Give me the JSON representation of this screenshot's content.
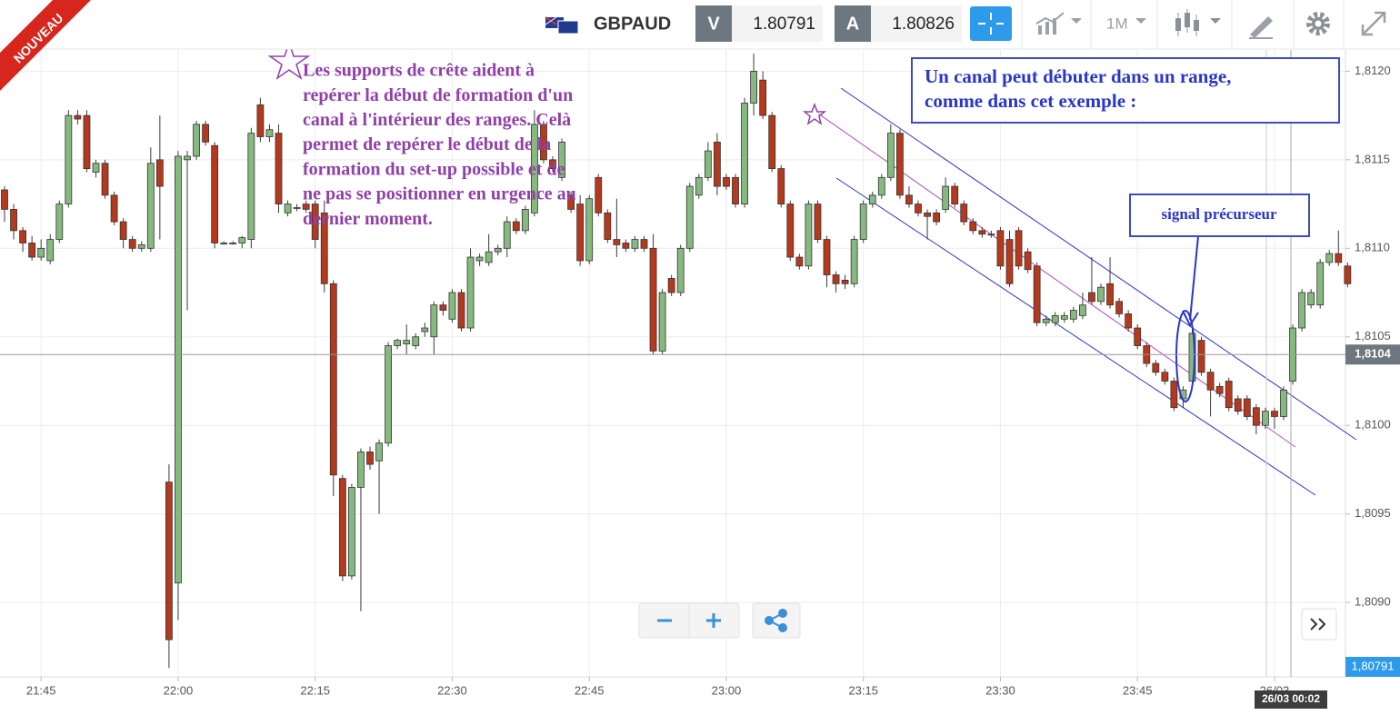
{
  "badge": "NOUVEAU",
  "toolbar": {
    "symbol": "GBPAUD",
    "sell": {
      "label": "V",
      "price": "1.80791"
    },
    "buy": {
      "label": "A",
      "price": "1.80826"
    },
    "timeframe": "1M"
  },
  "notes": {
    "setup": [
      "Les supports de crête aident à",
      "repérer la début de formation d'un",
      "canal à l'intérieur des ranges. Celà",
      "permet de repérer le début de la",
      "formation du set-up possible et de",
      "ne pas se positionner en urgence au",
      "dernier moment."
    ],
    "channel": [
      "Un canal peut débuter dans un range,",
      "comme dans cet exemple :"
    ],
    "signal": "signal précurseur"
  },
  "chart_data": {
    "type": "candlestick",
    "up_color": "#86b97f",
    "down_color": "#b5391c",
    "grid": true,
    "ylim": [
      1.80858,
      1.81212
    ],
    "yticks": [
      {
        "value": 1.809,
        "label": "1,8090"
      },
      {
        "value": 1.8095,
        "label": "1,8095"
      },
      {
        "value": 1.81,
        "label": "1,8100"
      },
      {
        "value": 1.8105,
        "label": "1,8105"
      },
      {
        "value": 1.811,
        "label": "1,8110"
      },
      {
        "value": 1.8115,
        "label": "1,8115"
      },
      {
        "value": 1.812,
        "label": "1,8120"
      }
    ],
    "current_price": {
      "value": 1.8104,
      "label": "1,8104"
    },
    "bid_price": {
      "value": 1.80791,
      "label": "1,80791"
    },
    "crosshair_label": "26/03 00:02",
    "categories": [
      null,
      null,
      null,
      null,
      "21:45",
      null,
      null,
      null,
      null,
      null,
      null,
      null,
      null,
      null,
      null,
      null,
      null,
      null,
      null,
      "22:00",
      null,
      null,
      null,
      null,
      null,
      null,
      null,
      null,
      null,
      null,
      null,
      null,
      null,
      null,
      "22:15",
      null,
      null,
      null,
      null,
      null,
      null,
      null,
      null,
      null,
      null,
      null,
      null,
      null,
      null,
      "22:30",
      null,
      null,
      null,
      null,
      null,
      null,
      null,
      null,
      null,
      null,
      null,
      null,
      null,
      null,
      "22:45",
      null,
      null,
      null,
      null,
      null,
      null,
      null,
      null,
      null,
      null,
      null,
      null,
      null,
      null,
      "23:00",
      null,
      null,
      null,
      null,
      null,
      null,
      null,
      null,
      null,
      null,
      null,
      null,
      null,
      null,
      "23:15",
      null,
      null,
      null,
      null,
      null,
      null,
      null,
      null,
      null,
      null,
      null,
      null,
      null,
      null,
      "23:30",
      null,
      null,
      null,
      null,
      null,
      null,
      null,
      null,
      null,
      null,
      null,
      null,
      null,
      null,
      "23:45",
      null,
      null,
      null,
      null,
      null,
      null,
      null,
      null,
      null,
      null,
      null,
      null,
      null,
      null,
      "26/03",
      null,
      null,
      null,
      null,
      null,
      null,
      null,
      null
    ],
    "ohlc": [
      [
        1.81133,
        1.81135,
        1.81115,
        1.81122
      ],
      [
        1.81122,
        1.81125,
        1.81105,
        1.8111
      ],
      [
        1.8111,
        1.81112,
        1.81098,
        1.81103
      ],
      [
        1.81103,
        1.81107,
        1.81093,
        1.81095
      ],
      [
        1.81095,
        1.81105,
        1.81093,
        1.811
      ],
      [
        1.81093,
        1.81108,
        1.81091,
        1.81105
      ],
      [
        1.81105,
        1.81127,
        1.81103,
        1.81125
      ],
      [
        1.81125,
        1.81178,
        1.81123,
        1.81175
      ],
      [
        1.81175,
        1.81178,
        1.8117,
        1.81173
      ],
      [
        1.81175,
        1.81178,
        1.81143,
        1.81145
      ],
      [
        1.81143,
        1.8115,
        1.8114,
        1.81148
      ],
      [
        1.81148,
        1.8115,
        1.81128,
        1.8113
      ],
      [
        1.8113,
        1.81132,
        1.81113,
        1.81115
      ],
      [
        1.81115,
        1.81117,
        1.811,
        1.81105
      ],
      [
        1.81105,
        1.81107,
        1.81098,
        1.811
      ],
      [
        1.811,
        1.81104,
        1.81098,
        1.81102
      ],
      [
        1.811,
        1.81157,
        1.81098,
        1.81148
      ],
      [
        1.8115,
        1.81175,
        1.81105,
        1.81135
      ],
      [
        1.80968,
        1.80978,
        1.80863,
        1.80879
      ],
      [
        1.80911,
        1.81155,
        1.8089,
        1.81152
      ],
      [
        1.8115,
        1.81155,
        1.81065,
        1.81152
      ],
      [
        1.81152,
        1.81172,
        1.8115,
        1.8117
      ],
      [
        1.8117,
        1.81172,
        1.81158,
        1.8116
      ],
      [
        1.81158,
        1.8116,
        1.811,
        1.81103
      ],
      [
        1.81103,
        1.81104,
        1.81102,
        1.81103
      ],
      [
        1.81103,
        1.81104,
        1.81102,
        1.81103
      ],
      [
        1.81103,
        1.81107,
        1.811,
        1.81106
      ],
      [
        1.81105,
        1.81168,
        1.811,
        1.81165
      ],
      [
        1.81181,
        1.81185,
        1.8116,
        1.81163
      ],
      [
        1.81163,
        1.8117,
        1.8116,
        1.81167
      ],
      [
        1.81165,
        1.8117,
        1.8112,
        1.81125
      ],
      [
        1.8112,
        1.81127,
        1.81118,
        1.81125
      ],
      [
        1.81123,
        1.81125,
        1.81121,
        1.81123
      ],
      [
        1.81125,
        1.81127,
        1.8112,
        1.81122
      ],
      [
        1.81125,
        1.81127,
        1.811,
        1.81105
      ],
      [
        1.8112,
        1.81127,
        1.81075,
        1.8108
      ],
      [
        1.8108,
        1.81082,
        1.8096,
        1.80972
      ],
      [
        1.8097,
        1.80972,
        1.80912,
        1.80915
      ],
      [
        1.80915,
        1.80967,
        1.80913,
        1.80965
      ],
      [
        1.80965,
        1.80987,
        1.80895,
        1.80985
      ],
      [
        1.80985,
        1.80988,
        1.80975,
        1.80978
      ],
      [
        1.8098,
        1.80992,
        1.8095,
        1.8099
      ],
      [
        1.8099,
        1.81047,
        1.80988,
        1.81045
      ],
      [
        1.81045,
        1.81049,
        1.81043,
        1.81048
      ],
      [
        1.81046,
        1.81057,
        1.8104,
        1.81048
      ],
      [
        1.81045,
        1.81052,
        1.81043,
        1.8105
      ],
      [
        1.81053,
        1.81058,
        1.8105,
        1.81055
      ],
      [
        1.8105,
        1.8107,
        1.8104,
        1.81068
      ],
      [
        1.81068,
        1.8107,
        1.81062,
        1.81065
      ],
      [
        1.8106,
        1.81077,
        1.81058,
        1.81075
      ],
      [
        1.81075,
        1.81077,
        1.81053,
        1.81055
      ],
      [
        1.81055,
        1.811,
        1.81053,
        1.81095
      ],
      [
        1.81093,
        1.81097,
        1.8109,
        1.81095
      ],
      [
        1.81092,
        1.81108,
        1.8109,
        1.81098
      ],
      [
        1.81098,
        1.81102,
        1.81096,
        1.811
      ],
      [
        1.811,
        1.81118,
        1.81095,
        1.81115
      ],
      [
        1.81115,
        1.81117,
        1.81108,
        1.8111
      ],
      [
        1.8111,
        1.81124,
        1.81108,
        1.81122
      ],
      [
        1.8112,
        1.81178,
        1.81118,
        1.8117
      ],
      [
        1.8117,
        1.81172,
        1.81148,
        1.8115
      ],
      [
        1.8115,
        1.81152,
        1.81143,
        1.81145
      ],
      [
        1.8114,
        1.81162,
        1.81138,
        1.8116
      ],
      [
        1.8113,
        1.81132,
        1.8112,
        1.81122
      ],
      [
        1.81125,
        1.8113,
        1.8109,
        1.81093
      ],
      [
        1.81093,
        1.8113,
        1.81091,
        1.81128
      ],
      [
        1.8114,
        1.81142,
        1.81118,
        1.8112
      ],
      [
        1.8112,
        1.81122,
        1.81103,
        1.81105
      ],
      [
        1.81105,
        1.81128,
        1.81095,
        1.81102
      ],
      [
        1.81103,
        1.81105,
        1.81098,
        1.811
      ],
      [
        1.811,
        1.81107,
        1.81098,
        1.81105
      ],
      [
        1.81105,
        1.81107,
        1.81098,
        1.811
      ],
      [
        1.811,
        1.81108,
        1.8104,
        1.81042
      ],
      [
        1.81042,
        1.81077,
        1.8104,
        1.81075
      ],
      [
        1.81083,
        1.81085,
        1.81073,
        1.81075
      ],
      [
        1.81075,
        1.81102,
        1.81073,
        1.811
      ],
      [
        1.811,
        1.81137,
        1.81098,
        1.81135
      ],
      [
        1.8113,
        1.81142,
        1.81128,
        1.8114
      ],
      [
        1.8114,
        1.8116,
        1.81138,
        1.81155
      ],
      [
        1.8116,
        1.81165,
        1.8113,
        1.81135
      ],
      [
        1.8114,
        1.81142,
        1.81133,
        1.81135
      ],
      [
        1.8114,
        1.81142,
        1.81123,
        1.81125
      ],
      [
        1.81125,
        1.81185,
        1.81123,
        1.81182
      ],
      [
        1.81182,
        1.8121,
        1.81175,
        1.812
      ],
      [
        1.81195,
        1.812,
        1.81173,
        1.81175
      ],
      [
        1.81175,
        1.81177,
        1.81143,
        1.81145
      ],
      [
        1.81145,
        1.81147,
        1.81123,
        1.81125
      ],
      [
        1.81125,
        1.81127,
        1.81093,
        1.81095
      ],
      [
        1.81095,
        1.81097,
        1.81088,
        1.8109
      ],
      [
        1.8109,
        1.81127,
        1.81088,
        1.81125
      ],
      [
        1.81125,
        1.81127,
        1.81103,
        1.81105
      ],
      [
        1.81105,
        1.81107,
        1.81078,
        1.81085
      ],
      [
        1.81085,
        1.81087,
        1.81075,
        1.8108
      ],
      [
        1.81082,
        1.81085,
        1.81077,
        1.8108
      ],
      [
        1.8108,
        1.81107,
        1.81078,
        1.81105
      ],
      [
        1.81105,
        1.81127,
        1.81103,
        1.81125
      ],
      [
        1.81125,
        1.81132,
        1.81123,
        1.8113
      ],
      [
        1.8113,
        1.81142,
        1.81128,
        1.8114
      ],
      [
        1.8114,
        1.8117,
        1.81138,
        1.81165
      ],
      [
        1.81165,
        1.81167,
        1.81128,
        1.8113
      ],
      [
        1.8113,
        1.81135,
        1.81123,
        1.81125
      ],
      [
        1.81125,
        1.81127,
        1.81118,
        1.8112
      ],
      [
        1.8112,
        1.81122,
        1.81105,
        1.81118
      ],
      [
        1.8112,
        1.81122,
        1.81113,
        1.81115
      ],
      [
        1.81122,
        1.8114,
        1.8112,
        1.81135
      ],
      [
        1.81135,
        1.81137,
        1.81123,
        1.81125
      ],
      [
        1.81125,
        1.81127,
        1.81113,
        1.81115
      ],
      [
        1.81115,
        1.81117,
        1.81108,
        1.8111
      ],
      [
        1.8111,
        1.81112,
        1.81106,
        1.81108
      ],
      [
        1.81108,
        1.8111,
        1.81106,
        1.81108
      ],
      [
        1.8111,
        1.81112,
        1.81088,
        1.8109
      ],
      [
        1.81105,
        1.8111,
        1.81078,
        1.8108
      ],
      [
        1.8111,
        1.81112,
        1.81088,
        1.8109
      ],
      [
        1.81098,
        1.811,
        1.81086,
        1.81088
      ],
      [
        1.8109,
        1.81092,
        1.81056,
        1.81058
      ],
      [
        1.81058,
        1.81062,
        1.81056,
        1.8106
      ],
      [
        1.81058,
        1.81064,
        1.81056,
        1.81062
      ],
      [
        1.8106,
        1.81064,
        1.81058,
        1.81062
      ],
      [
        1.8106,
        1.81067,
        1.81058,
        1.81065
      ],
      [
        1.81062,
        1.81075,
        1.8106,
        1.81068
      ],
      [
        1.81075,
        1.81095,
        1.81068,
        1.8107
      ],
      [
        1.8107,
        1.8108,
        1.81068,
        1.81078
      ],
      [
        1.8108,
        1.81095,
        1.81066,
        1.81068
      ],
      [
        1.8107,
        1.81072,
        1.81061,
        1.81063
      ],
      [
        1.81063,
        1.81065,
        1.81053,
        1.81055
      ],
      [
        1.81055,
        1.81057,
        1.81043,
        1.81045
      ],
      [
        1.81045,
        1.81047,
        1.81033,
        1.81035
      ],
      [
        1.81035,
        1.81037,
        1.81028,
        1.8103
      ],
      [
        1.8103,
        1.81032,
        1.81023,
        1.81025
      ],
      [
        1.81025,
        1.81027,
        1.81008,
        1.8101
      ],
      [
        1.81015,
        1.81022,
        1.8101,
        1.8102
      ],
      [
        1.81025,
        1.81055,
        1.81023,
        1.81052
      ],
      [
        1.81048,
        1.8105,
        1.81028,
        1.8103
      ],
      [
        1.8103,
        1.81032,
        1.81005,
        1.8102
      ],
      [
        1.81022,
        1.81024,
        1.81016,
        1.81018
      ],
      [
        1.81025,
        1.81027,
        1.81008,
        1.8101
      ],
      [
        1.81015,
        1.81017,
        1.81006,
        1.81008
      ],
      [
        1.81015,
        1.81017,
        1.81003,
        1.81005
      ],
      [
        1.8101,
        1.81012,
        1.80995,
        1.81
      ],
      [
        1.81,
        1.8101,
        1.80998,
        1.81008
      ],
      [
        1.81008,
        1.8101,
        1.80998,
        1.81005
      ],
      [
        1.81005,
        1.81022,
        1.81003,
        1.8102
      ],
      [
        1.81025,
        1.81057,
        1.81023,
        1.81055
      ],
      [
        1.81055,
        1.81077,
        1.81053,
        1.81075
      ],
      [
        1.81068,
        1.81077,
        1.81066,
        1.81075
      ],
      [
        1.81068,
        1.81094,
        1.81066,
        1.81092
      ],
      [
        1.81092,
        1.81099,
        1.8109,
        1.81097
      ],
      [
        1.81097,
        1.8111,
        1.8109,
        1.81092
      ],
      [
        1.8109,
        1.81092,
        1.81078,
        1.8108
      ]
    ]
  }
}
